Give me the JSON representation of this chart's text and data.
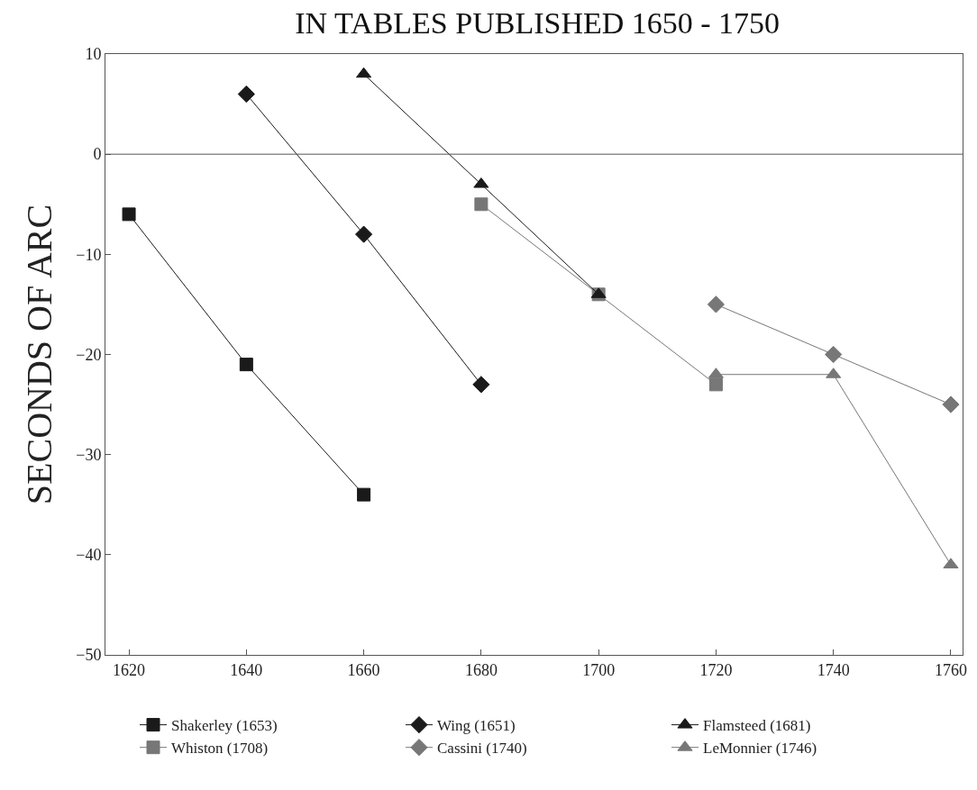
{
  "chart_data": {
    "type": "line",
    "title": "IN TABLES PUBLISHED 1650 - 1750",
    "ylabel": "SECONDS OF ARC",
    "xlim": [
      1616,
      1762
    ],
    "xticks": [
      1620,
      1640,
      1660,
      1680,
      1700,
      1720,
      1740,
      1760
    ],
    "ylim": [
      -50,
      10
    ],
    "yticks": [
      -50,
      -40,
      -30,
      -20,
      -10,
      0,
      10
    ],
    "grid": false,
    "legend": "bottom",
    "line_style": "solid",
    "ref_lines": [
      {
        "axis": "y",
        "value": 0,
        "color": "#555555"
      }
    ],
    "series": [
      {
        "name": "Shakerley (1653)",
        "color": "#1a1a1a",
        "marker": "square",
        "x": [
          1620,
          1640,
          1660
        ],
        "values": [
          -6,
          -21,
          -34
        ]
      },
      {
        "name": "Wing (1651)",
        "color": "#1a1a1a",
        "marker": "diamond",
        "x": [
          1640,
          1660,
          1680
        ],
        "values": [
          6,
          -8,
          -23
        ]
      },
      {
        "name": "Flamsteed (1681)",
        "color": "#1a1a1a",
        "marker": "triangle",
        "x": [
          1660,
          1680,
          1700
        ],
        "values": [
          8,
          -3,
          -14
        ]
      },
      {
        "name": "Whiston (1708)",
        "color": "#777777",
        "marker": "square",
        "x": [
          1680,
          1700,
          1720
        ],
        "values": [
          -5,
          -14,
          -23
        ]
      },
      {
        "name": "Cassini (1740)",
        "color": "#777777",
        "marker": "diamond",
        "x": [
          1720,
          1740,
          1760
        ],
        "values": [
          -15,
          -20,
          -25
        ]
      },
      {
        "name": "LeMonnier (1746)",
        "color": "#777777",
        "marker": "triangle",
        "x": [
          1720,
          1740,
          1760
        ],
        "values": [
          -22,
          -22,
          -41
        ]
      }
    ]
  }
}
